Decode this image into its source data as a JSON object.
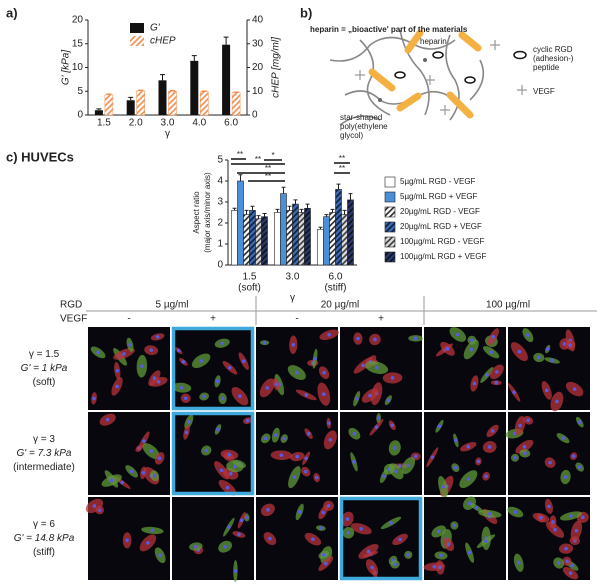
{
  "panels": {
    "a": "a)",
    "b": "b)",
    "c": "c) HUVECs"
  },
  "chart_data": [
    {
      "type": "bar",
      "categories": [
        "1.5",
        "2.0",
        "3.0",
        "4.0",
        "6.0"
      ],
      "xlabel": "γ",
      "ylabel": "G' [kPa]",
      "y2label": "cHEP [mg/ml]",
      "ylim": [
        0,
        20
      ],
      "yticks": [
        0,
        5,
        10,
        15,
        20
      ],
      "y2lim": [
        0,
        40
      ],
      "y2ticks": [
        0,
        10,
        20,
        30,
        40
      ],
      "legend": "top-left",
      "series": [
        {
          "name": "G'",
          "color": "#111111",
          "values": [
            1.0,
            3.1,
            7.3,
            11.4,
            14.8
          ],
          "errors": [
            0.3,
            0.6,
            1.2,
            1.1,
            1.6
          ]
        },
        {
          "name": "cHEP",
          "color": "#ffffff",
          "pattern": "hatch",
          "stripe": "#f08a4b",
          "axis": "y2",
          "values": [
            8.5,
            10.2,
            10.0,
            9.8,
            9.4
          ],
          "errors": [
            0.4,
            0.3,
            0.3,
            0.3,
            0.3
          ]
        }
      ]
    },
    {
      "type": "bar",
      "categories": [
        "1.5",
        "3.0",
        "6.0"
      ],
      "category_sublabels": [
        "(soft)",
        null,
        "(stiff)"
      ],
      "xlabel": "γ",
      "ylabel": [
        "Aspect ratio",
        "(major axis/minor axis)"
      ],
      "ylim": [
        0,
        5
      ],
      "yticks": [
        0,
        1,
        2,
        3,
        4,
        5
      ],
      "legend": "right",
      "annotations": [
        "**",
        "**",
        "**",
        "**",
        "*",
        "**",
        "**"
      ],
      "series": [
        {
          "name": "5µg/mL RGD - VEGF",
          "color": "#ffffff",
          "values": [
            2.6,
            2.5,
            1.7
          ],
          "errors": [
            0.1,
            0.15,
            0.1
          ]
        },
        {
          "name": "5µg/mL RGD + VEGF",
          "color": "#4a90d9",
          "values": [
            4.0,
            3.4,
            2.3
          ],
          "errors": [
            0.3,
            0.3,
            0.1
          ]
        },
        {
          "name": "20µg/mL RGD - VEGF",
          "color": "#ffffff",
          "pattern": "hatch",
          "stripe": "#222222",
          "values": [
            2.4,
            2.6,
            2.5
          ],
          "errors": [
            0.2,
            0.2,
            0.15
          ]
        },
        {
          "name": "20µg/mL RGD + VEGF",
          "color": "#3a6db5",
          "pattern": "hatch",
          "stripe": "#111a33",
          "values": [
            2.6,
            2.9,
            3.6
          ],
          "errors": [
            0.2,
            0.2,
            0.25
          ]
        },
        {
          "name": "100µg/mL RGD - VEGF",
          "color": "#dddddd",
          "pattern": "hatch",
          "stripe": "#333333",
          "values": [
            2.2,
            2.5,
            2.4
          ],
          "errors": [
            0.15,
            0.15,
            0.2
          ]
        },
        {
          "name": "100µg/mL RGD + VEGF",
          "color": "#2a3a6a",
          "pattern": "hatch",
          "stripe": "#0a1020",
          "values": [
            2.3,
            2.7,
            3.1
          ],
          "errors": [
            0.15,
            0.2,
            0.3
          ]
        }
      ]
    }
  ],
  "diagram": {
    "title": "heparin = „bioactive' part of the materials",
    "heparin": "heparin",
    "rgd": [
      "cyclic RGD",
      "(adhesion-)",
      "peptide"
    ],
    "vegf": "VEGF",
    "peg": [
      "star-shaped",
      "poly(ethylene",
      "glycol)"
    ]
  },
  "grid": {
    "rgd_label": "RGD",
    "vegf_label": "VEGF",
    "rgd": [
      "5 µg/ml",
      "20 µg/ml",
      "100 µg/ml"
    ],
    "vegf": [
      "-",
      "+",
      "-",
      "+"
    ],
    "rows": [
      [
        "γ = 1.5",
        "G' = 1 kPa",
        "(soft)"
      ],
      [
        "γ = 3",
        "G' = 7.3 kPa",
        "(intermediate)"
      ],
      [
        "γ = 6",
        "G' = 14.8 kPa",
        "(stiff)"
      ]
    ],
    "highlighted": [
      [
        0,
        1
      ],
      [
        1,
        1
      ],
      [
        2,
        3
      ]
    ]
  }
}
